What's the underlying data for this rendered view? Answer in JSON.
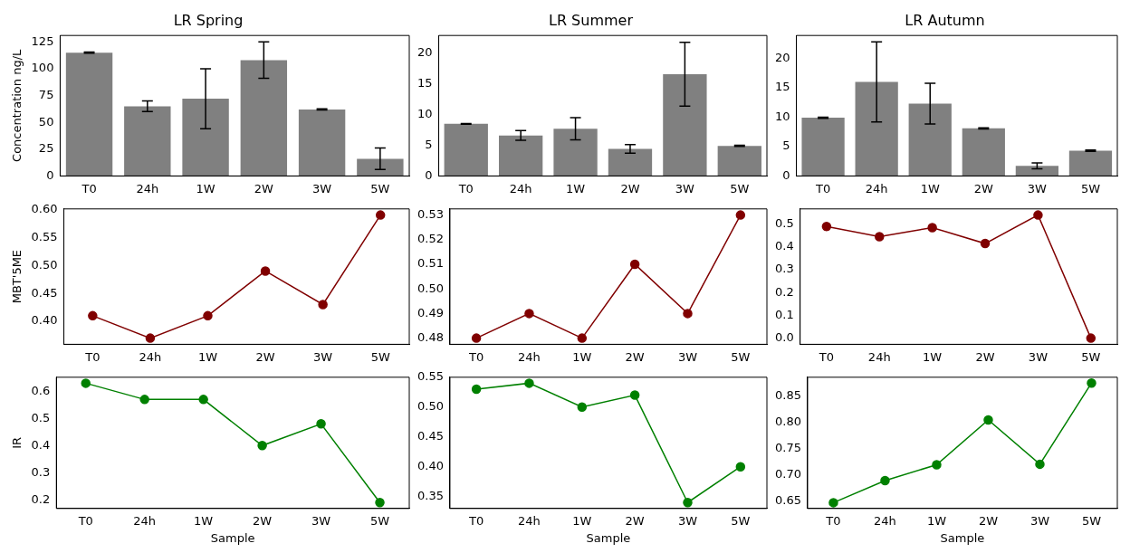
{
  "chart_data": [
    {
      "type": "bar",
      "title": "LR Spring",
      "ylabel": "Concentration ng/L",
      "categories": [
        "T0",
        "24h",
        "1W",
        "2W",
        "3W",
        "5W"
      ],
      "values": [
        115,
        65,
        72,
        108,
        62,
        16
      ],
      "errors": [
        0.5,
        5,
        28,
        17,
        0.5,
        10
      ],
      "color": "#808080",
      "ylim": [
        0,
        131
      ],
      "yticks": [
        0,
        25,
        50,
        75,
        100,
        125
      ]
    },
    {
      "type": "bar",
      "title": "LR Summer",
      "categories": [
        "T0",
        "24h",
        "1W",
        "2W",
        "3W",
        "5W"
      ],
      "values": [
        8.5,
        6.6,
        7.7,
        4.4,
        16.6,
        4.9
      ],
      "errors": [
        0.05,
        0.8,
        1.8,
        0.7,
        5.2,
        0.1
      ],
      "color": "#808080",
      "ylim": [
        0,
        22.9
      ],
      "yticks": [
        0,
        5,
        10,
        15,
        20
      ]
    },
    {
      "type": "bar",
      "title": "LR Autumn",
      "categories": [
        "T0",
        "24h",
        "1W",
        "2W",
        "3W",
        "5W"
      ],
      "values": [
        9.9,
        16,
        12.3,
        8.1,
        1.7,
        4.3
      ],
      "errors": [
        0.1,
        6.8,
        3.45,
        0.1,
        0.5,
        0.1
      ],
      "color": "#808080",
      "ylim": [
        0,
        23.9
      ],
      "yticks": [
        0,
        5,
        10,
        15,
        20
      ]
    },
    {
      "type": "line",
      "ylabel": "MBT'5ME",
      "categories": [
        "T0",
        "24h",
        "1W",
        "2W",
        "3W",
        "5W"
      ],
      "values": [
        0.41,
        0.37,
        0.41,
        0.49,
        0.43,
        0.59
      ],
      "color": "#800000",
      "marker": "circle",
      "ylim": [
        0.359,
        0.601
      ],
      "yticks": [
        {
          "value": 0.4,
          "label": "0.40"
        },
        {
          "value": 0.45,
          "label": "0.45"
        },
        {
          "value": 0.5,
          "label": "0.50"
        },
        {
          "value": 0.55,
          "label": "0.55"
        },
        {
          "value": 0.6,
          "label": "0.60"
        }
      ]
    },
    {
      "type": "line",
      "categories": [
        "T0",
        "24h",
        "1W",
        "2W",
        "3W",
        "5W"
      ],
      "values": [
        0.48,
        0.49,
        0.48,
        0.51,
        0.49,
        0.53
      ],
      "color": "#800000",
      "marker": "circle",
      "ylim": [
        0.4775,
        0.5325
      ],
      "yticks": [
        {
          "value": 0.48,
          "label": "0.48"
        },
        {
          "value": 0.49,
          "label": "0.49"
        },
        {
          "value": 0.5,
          "label": "0.50"
        },
        {
          "value": 0.51,
          "label": "0.51"
        },
        {
          "value": 0.52,
          "label": "0.52"
        },
        {
          "value": 0.53,
          "label": "0.53"
        }
      ]
    },
    {
      "type": "line",
      "categories": [
        "T0",
        "24h",
        "1W",
        "2W",
        "3W",
        "5W"
      ],
      "values": [
        0.49,
        0.445,
        0.485,
        0.415,
        0.54,
        0.0
      ],
      "color": "#800000",
      "marker": "circle",
      "ylim": [
        -0.027,
        0.567
      ],
      "yticks": [
        {
          "value": 0,
          "label": "0.0"
        },
        {
          "value": 0.1,
          "label": "0.1"
        },
        {
          "value": 0.2,
          "label": "0.2"
        },
        {
          "value": 0.3,
          "label": "0.3"
        },
        {
          "value": 0.4,
          "label": "0.4"
        },
        {
          "value": 0.5,
          "label": "0.5"
        }
      ]
    },
    {
      "type": "line",
      "ylabel": "IR",
      "xlabel": "Sample",
      "categories": [
        "T0",
        "24h",
        "1W",
        "2W",
        "3W",
        "5W"
      ],
      "values": [
        0.63,
        0.57,
        0.57,
        0.4,
        0.48,
        0.19
      ],
      "color": "#008000",
      "marker": "circle",
      "ylim": [
        0.168,
        0.652
      ],
      "yticks": [
        {
          "value": 0.2,
          "label": "0.2"
        },
        {
          "value": 0.3,
          "label": "0.3"
        },
        {
          "value": 0.4,
          "label": "0.4"
        },
        {
          "value": 0.5,
          "label": "0.5"
        },
        {
          "value": 0.6,
          "label": "0.6"
        }
      ]
    },
    {
      "type": "line",
      "xlabel": "Sample",
      "categories": [
        "T0",
        "24h",
        "1W",
        "2W",
        "3W",
        "5W"
      ],
      "values": [
        0.53,
        0.54,
        0.5,
        0.52,
        0.34,
        0.4
      ],
      "color": "#008000",
      "marker": "circle",
      "ylim": [
        0.33,
        0.55
      ],
      "yticks": [
        {
          "value": 0.35,
          "label": "0.35"
        },
        {
          "value": 0.4,
          "label": "0.40"
        },
        {
          "value": 0.45,
          "label": "0.45"
        },
        {
          "value": 0.5,
          "label": "0.50"
        },
        {
          "value": 0.55,
          "label": "0.55"
        }
      ]
    },
    {
      "type": "line",
      "xlabel": "Sample",
      "categories": [
        "T0",
        "24h",
        "1W",
        "2W",
        "3W",
        "5W"
      ],
      "values": [
        0.647,
        0.689,
        0.719,
        0.804,
        0.72,
        0.874
      ],
      "color": "#008000",
      "marker": "circle",
      "ylim": [
        0.636,
        0.885
      ],
      "yticks": [
        {
          "value": 0.65,
          "label": "0.65"
        },
        {
          "value": 0.7,
          "label": "0.70"
        },
        {
          "value": 0.75,
          "label": "0.75"
        },
        {
          "value": 0.8,
          "label": "0.80"
        },
        {
          "value": 0.85,
          "label": "0.85"
        }
      ]
    }
  ]
}
